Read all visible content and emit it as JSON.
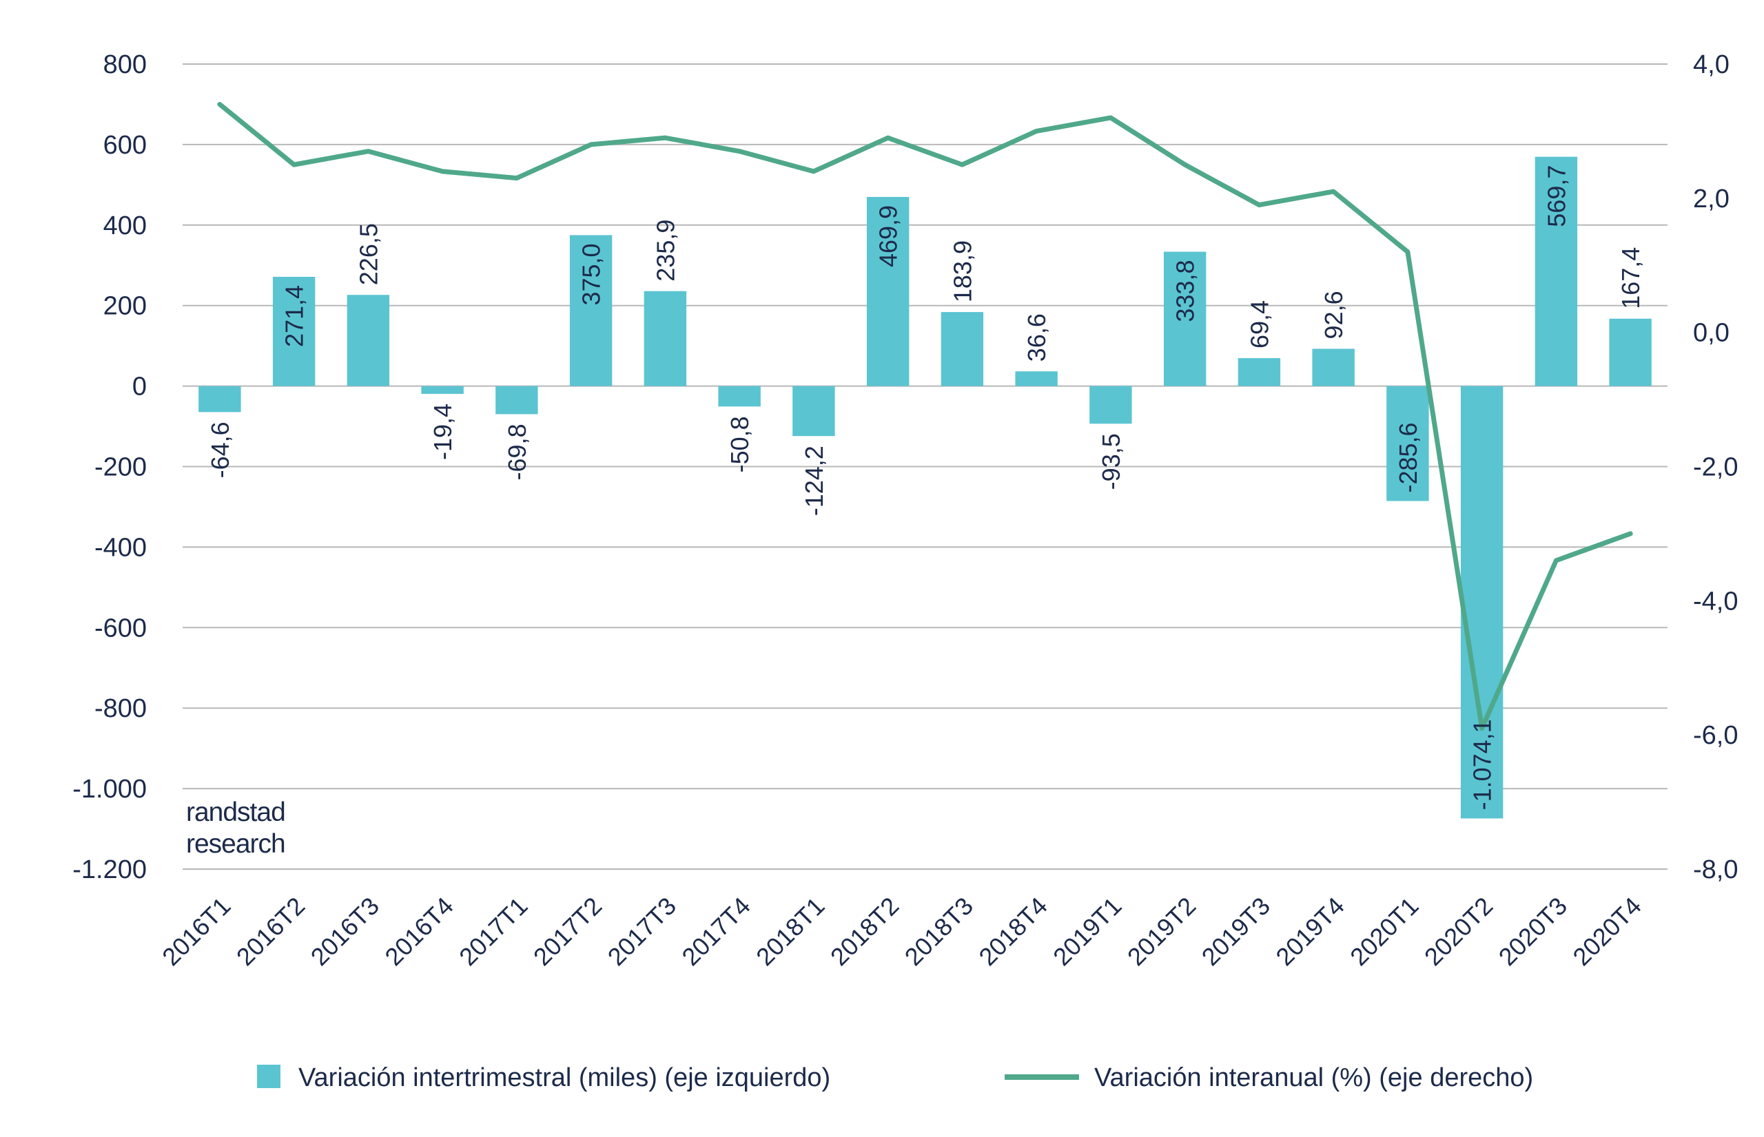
{
  "chart_data": {
    "type": "bar",
    "categories": [
      "2016T1",
      "2016T2",
      "2016T3",
      "2016T4",
      "2017T1",
      "2017T2",
      "2017T3",
      "2017T4",
      "2018T1",
      "2018T2",
      "2018T3",
      "2018T4",
      "2019T1",
      "2019T2",
      "2019T3",
      "2019T4",
      "2020T1",
      "2020T2",
      "2020T3",
      "2020T4"
    ],
    "series": [
      {
        "name": "Variación intertrimestral (miles) (eje izquierdo)",
        "type": "bar",
        "axis": "left",
        "color": "#5bc4d1",
        "values": [
          -64.6,
          271.4,
          226.5,
          -19.4,
          -69.8,
          375.0,
          235.9,
          -50.8,
          -124.2,
          469.9,
          183.9,
          36.6,
          -93.5,
          333.8,
          69.4,
          92.6,
          -285.6,
          -1074.1,
          569.7,
          167.4
        ],
        "labels": [
          "-64,6",
          "271,4",
          "226,5",
          "-19,4",
          "-69,8",
          "375,0",
          "235,9",
          "-50,8",
          "-124,2",
          "469,9",
          "183,9",
          "36,6",
          "-93,5",
          "333,8",
          "69,4",
          "92,6",
          "-285,6",
          "-1.074,1",
          "569,7",
          "167,4"
        ]
      },
      {
        "name": "Variación interanual (%) (eje derecho)",
        "type": "line",
        "axis": "right",
        "color": "#4fa88a",
        "values": [
          3.4,
          2.5,
          2.7,
          2.4,
          2.3,
          2.8,
          2.9,
          2.7,
          2.4,
          2.9,
          2.5,
          3.0,
          3.2,
          2.5,
          1.9,
          2.1,
          1.2,
          -5.9,
          -3.4,
          -3.0
        ]
      }
    ],
    "y_left": {
      "range": [
        -1200,
        800
      ],
      "ticks": [
        800,
        600,
        400,
        200,
        0,
        -200,
        -400,
        -600,
        -800,
        -1000,
        -1200
      ],
      "tick_labels": [
        "800",
        "600",
        "400",
        "200",
        "0",
        "-200",
        "-400",
        "-600",
        "-800",
        "-1.000",
        "-1.200"
      ]
    },
    "y_right": {
      "range": [
        -8,
        4
      ],
      "ticks": [
        4,
        2,
        0,
        -2,
        -4,
        -6,
        -8
      ],
      "tick_labels": [
        "4,0",
        "2,0",
        "0,0",
        "-2,0",
        "-4,0",
        "-6,0",
        "-8,0"
      ]
    },
    "grid": true,
    "legend_position": "bottom",
    "watermark": [
      "randstad",
      "research"
    ]
  }
}
